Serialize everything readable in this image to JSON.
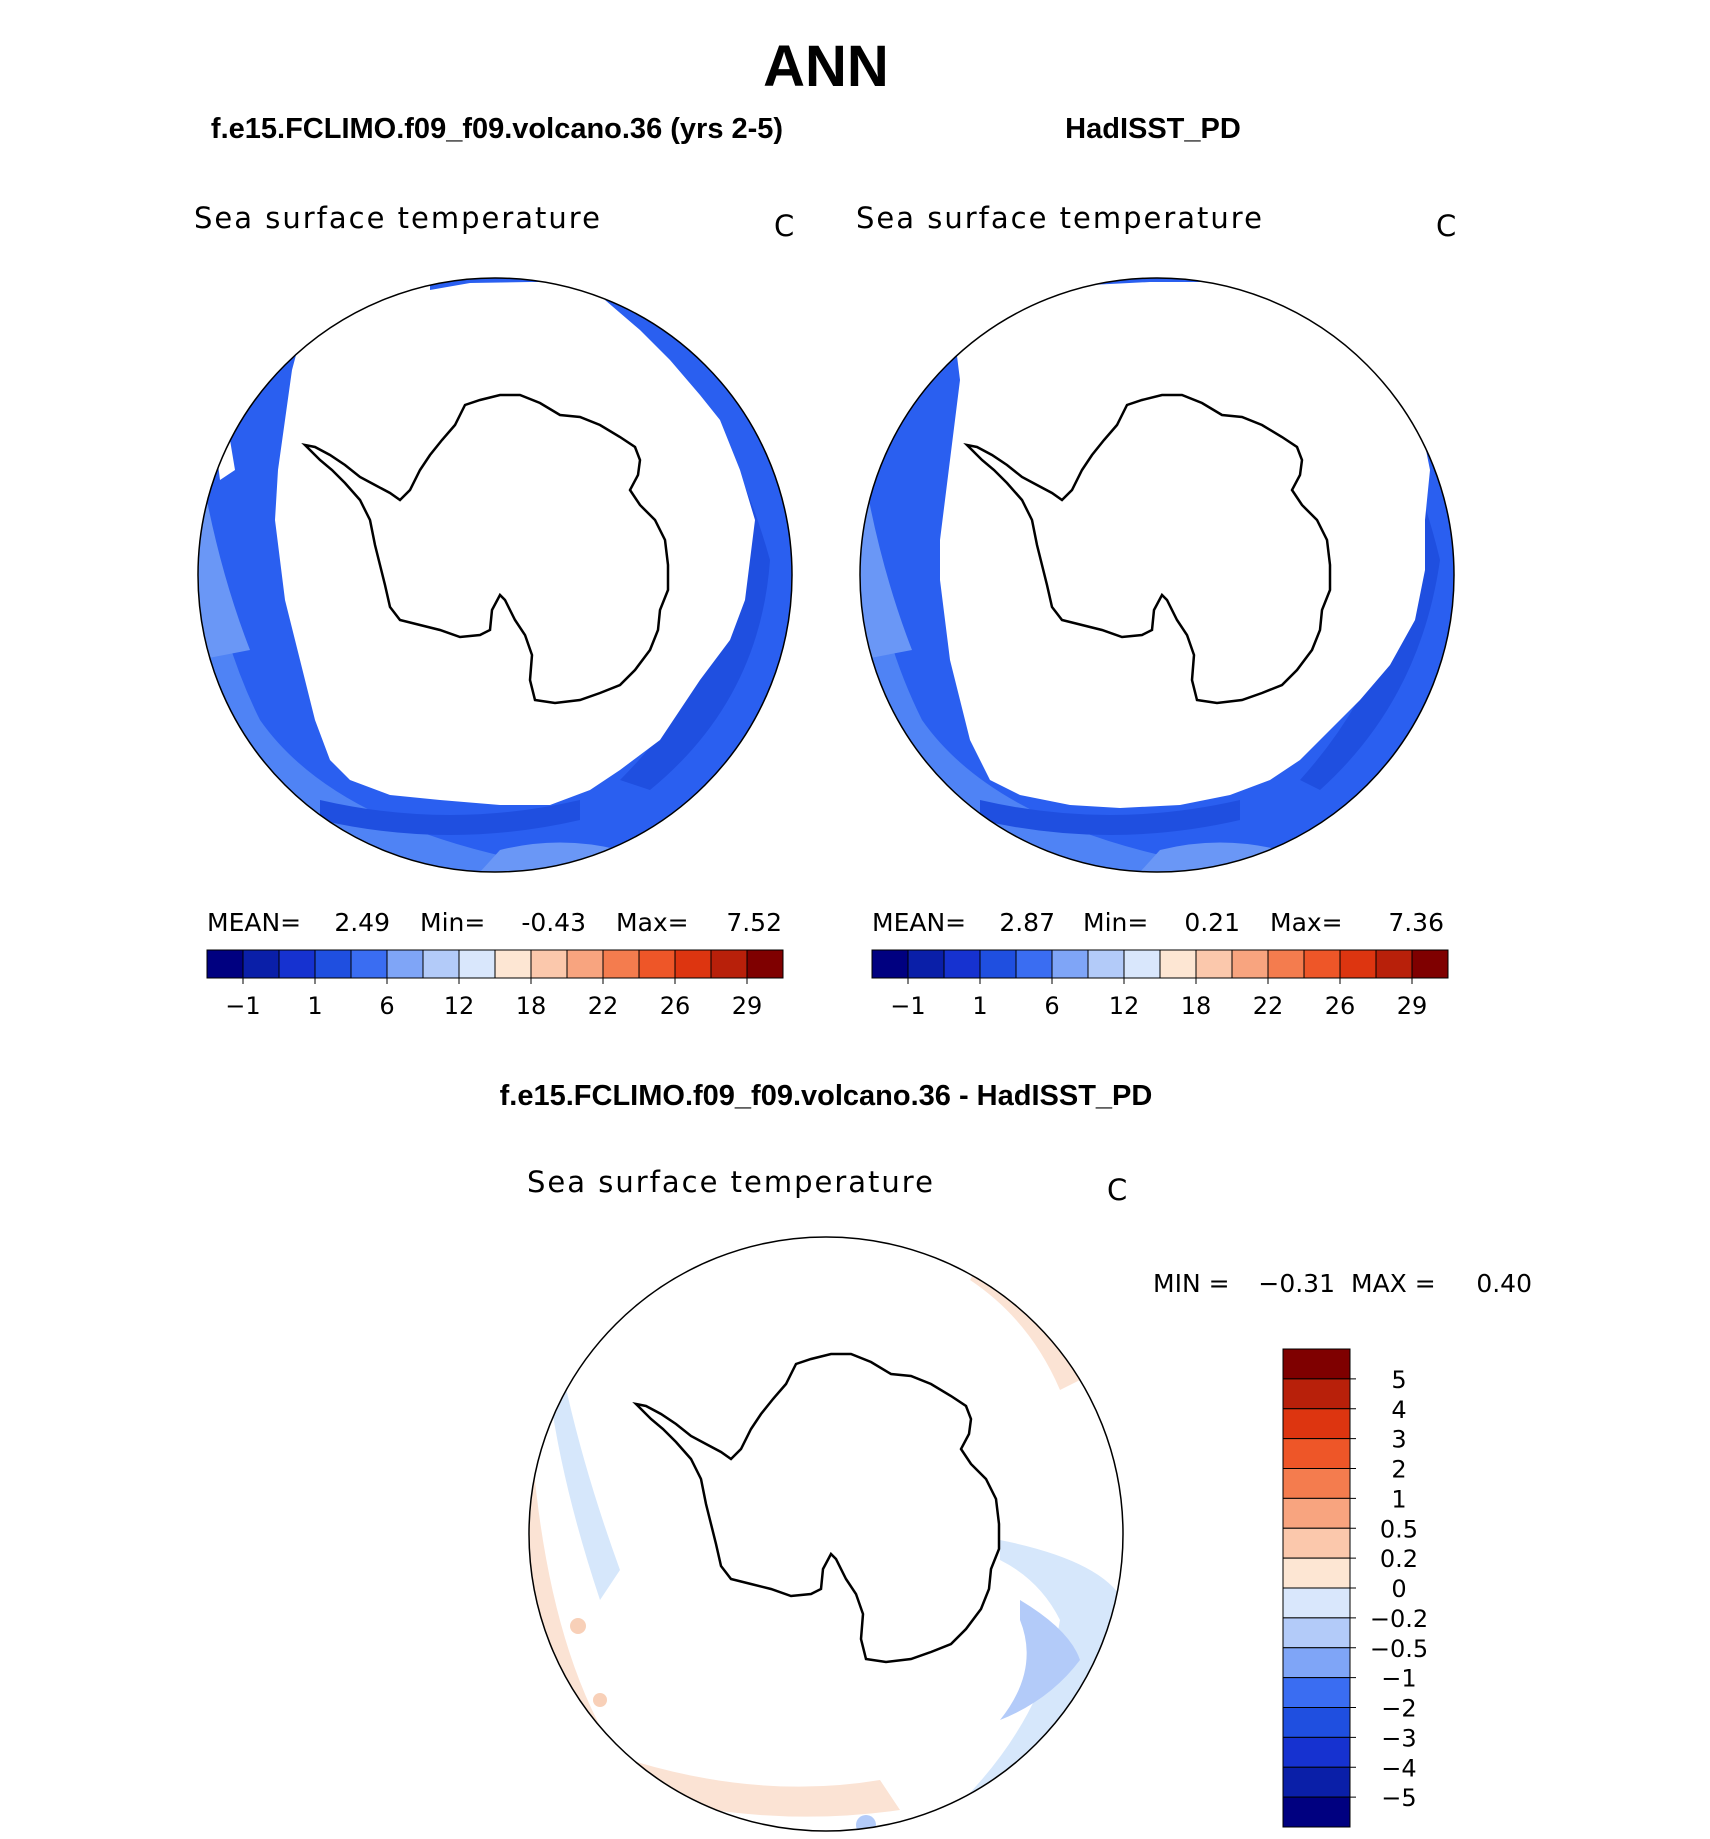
{
  "page": {
    "title": "ANN",
    "panel_left_title": "f.e15.FCLIMO.f09_f09.volcano.36 (yrs 2-5)",
    "panel_right_title": "HadISST_PD",
    "diff_title": "f.e15.FCLIMO.f09_f09.volcano.36 - HadISST_PD"
  },
  "colors": {
    "ocean_cold": "#1f4fe0",
    "ocean_mid": "#2a5ff0",
    "ocean_warm": "#4f83f5",
    "ice": "#ffffff",
    "diff_warm": "#fbe3d4",
    "diff_cool": "#d6e7fb"
  },
  "chart_data": [
    {
      "type": "heatmap",
      "projection": "south-polar-stereographic",
      "title": "f.e15.FCLIMO.f09_f09.volcano.36 (yrs 2-5)",
      "variable": "Sea surface temperature",
      "units": "C",
      "stats": {
        "mean_label": "MEAN=",
        "mean": "2.49",
        "min_label": "Min=",
        "min": "-0.43",
        "max_label": "Max=",
        "max": "7.52"
      },
      "colorbar": {
        "orientation": "horizontal",
        "tick_labels": [
          "−1",
          "1",
          "6",
          "12",
          "18",
          "22",
          "26",
          "29"
        ],
        "colors": [
          "#000080",
          "#0a1fa8",
          "#1632d0",
          "#1f4fe0",
          "#3a6df2",
          "#7fa5f7",
          "#b3cbf9",
          "#d9e7fc",
          "#fde6d3",
          "#fbc8ac",
          "#f8a47f",
          "#f47c4e",
          "#ee5628",
          "#dd3510",
          "#b8200a",
          "#7f0000"
        ]
      }
    },
    {
      "type": "heatmap",
      "projection": "south-polar-stereographic",
      "title": "HadISST_PD",
      "variable": "Sea surface temperature",
      "units": "C",
      "stats": {
        "mean_label": "MEAN=",
        "mean": "2.87",
        "min_label": "Min=",
        "min": "0.21",
        "max_label": "Max=",
        "max": "7.36"
      },
      "colorbar": {
        "orientation": "horizontal",
        "tick_labels": [
          "−1",
          "1",
          "6",
          "12",
          "18",
          "22",
          "26",
          "29"
        ],
        "colors": [
          "#000080",
          "#0a1fa8",
          "#1632d0",
          "#1f4fe0",
          "#3a6df2",
          "#7fa5f7",
          "#b3cbf9",
          "#d9e7fc",
          "#fde6d3",
          "#fbc8ac",
          "#f8a47f",
          "#f47c4e",
          "#ee5628",
          "#dd3510",
          "#b8200a",
          "#7f0000"
        ]
      }
    },
    {
      "type": "heatmap",
      "projection": "south-polar-stereographic",
      "title": "f.e15.FCLIMO.f09_f09.volcano.36 - HadISST_PD",
      "variable": "Sea surface temperature",
      "units": "C",
      "stats": {
        "min_label": "MIN =",
        "min": "−0.31",
        "max_label": "MAX =",
        "max": "0.40"
      },
      "colorbar": {
        "orientation": "vertical",
        "tick_labels": [
          "5",
          "4",
          "3",
          "2",
          "1",
          "0.5",
          "0.2",
          "0",
          "−0.2",
          "−0.5",
          "−1",
          "−2",
          "−3",
          "−4",
          "−5"
        ],
        "colors": [
          "#7f0000",
          "#b8200a",
          "#dd3510",
          "#ee5628",
          "#f47c4e",
          "#f8a47f",
          "#fbc8ac",
          "#fde6d3",
          "#d9e7fc",
          "#b3cbf9",
          "#7fa5f7",
          "#3a6df2",
          "#1f4fe0",
          "#1632d0",
          "#0a1fa8",
          "#000080"
        ]
      }
    }
  ]
}
